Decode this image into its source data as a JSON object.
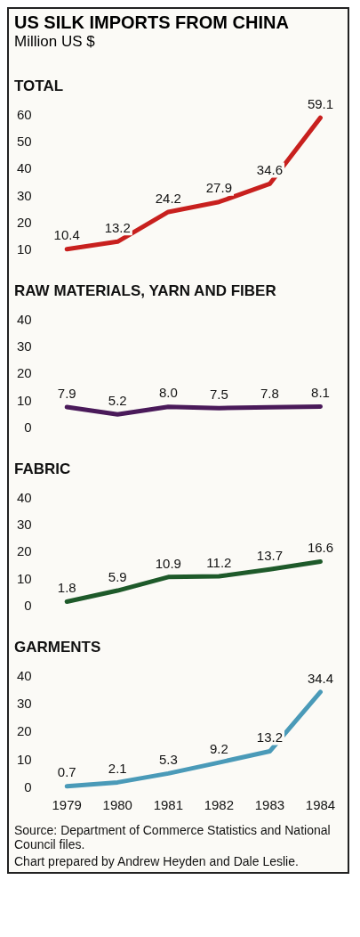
{
  "chart_data": [
    {
      "type": "other",
      "title": "US SILK IMPORTS FROM CHINA",
      "subtitle": "Million US $"
    },
    {
      "type": "line",
      "title": "TOTAL",
      "categories": [
        "1979",
        "1980",
        "1981",
        "1982",
        "1983",
        "1984"
      ],
      "tick_labels": "y",
      "ylim": [
        10,
        60
      ],
      "yticks": [
        10,
        20,
        30,
        40,
        50,
        60
      ],
      "grid": false,
      "legend": false,
      "series": [
        {
          "color": "#c8201e",
          "values": [
            10.4,
            13.2,
            24.2,
            27.9,
            34.6,
            59.1
          ],
          "value_labels": [
            "10.4",
            "13.2",
            "24.2",
            "27.9",
            "34.6",
            "59.1"
          ]
        }
      ]
    },
    {
      "type": "line",
      "title": "RAW MATERIALS, YARN AND FIBER",
      "categories": [
        "1979",
        "1980",
        "1981",
        "1982",
        "1983",
        "1984"
      ],
      "tick_labels": "y",
      "ylim": [
        0,
        40
      ],
      "yticks": [
        0,
        10,
        20,
        30,
        40
      ],
      "grid": false,
      "legend": false,
      "series": [
        {
          "color": "#4a1a5a",
          "values": [
            7.9,
            5.2,
            8.0,
            7.5,
            7.8,
            8.1
          ],
          "value_labels": [
            "7.9",
            "5.2",
            "8.0",
            "7.5",
            "7.8",
            "8.1"
          ]
        }
      ]
    },
    {
      "type": "line",
      "title": "FABRIC",
      "categories": [
        "1979",
        "1980",
        "1981",
        "1982",
        "1983",
        "1984"
      ],
      "tick_labels": "y",
      "ylim": [
        0,
        40
      ],
      "yticks": [
        0,
        10,
        20,
        30,
        40
      ],
      "grid": false,
      "legend": false,
      "series": [
        {
          "color": "#1e5a2a",
          "values": [
            1.8,
            5.9,
            10.9,
            11.2,
            13.7,
            16.6
          ],
          "value_labels": [
            "1.8",
            "5.9",
            "10.9",
            "11.2",
            "13.7",
            "16.6"
          ]
        }
      ]
    },
    {
      "type": "line",
      "title": "GARMENTS",
      "categories": [
        "1979",
        "1980",
        "1981",
        "1982",
        "1983",
        "1984"
      ],
      "ylim": [
        0,
        40
      ],
      "yticks": [
        0,
        10,
        20,
        30,
        40
      ],
      "grid": false,
      "legend": false,
      "series": [
        {
          "color": "#4a9ab8",
          "values": [
            0.7,
            2.1,
            5.3,
            9.2,
            13.2,
            34.4
          ],
          "value_labels": [
            "0.7",
            "2.1",
            "5.3",
            "9.2",
            "13.2",
            "34.4"
          ]
        }
      ],
      "annotations": [
        "Source: Department of Commerce Statistics and National Council files.",
        "Chart prepared by Andrew Heyden and Dale Leslie."
      ]
    }
  ]
}
